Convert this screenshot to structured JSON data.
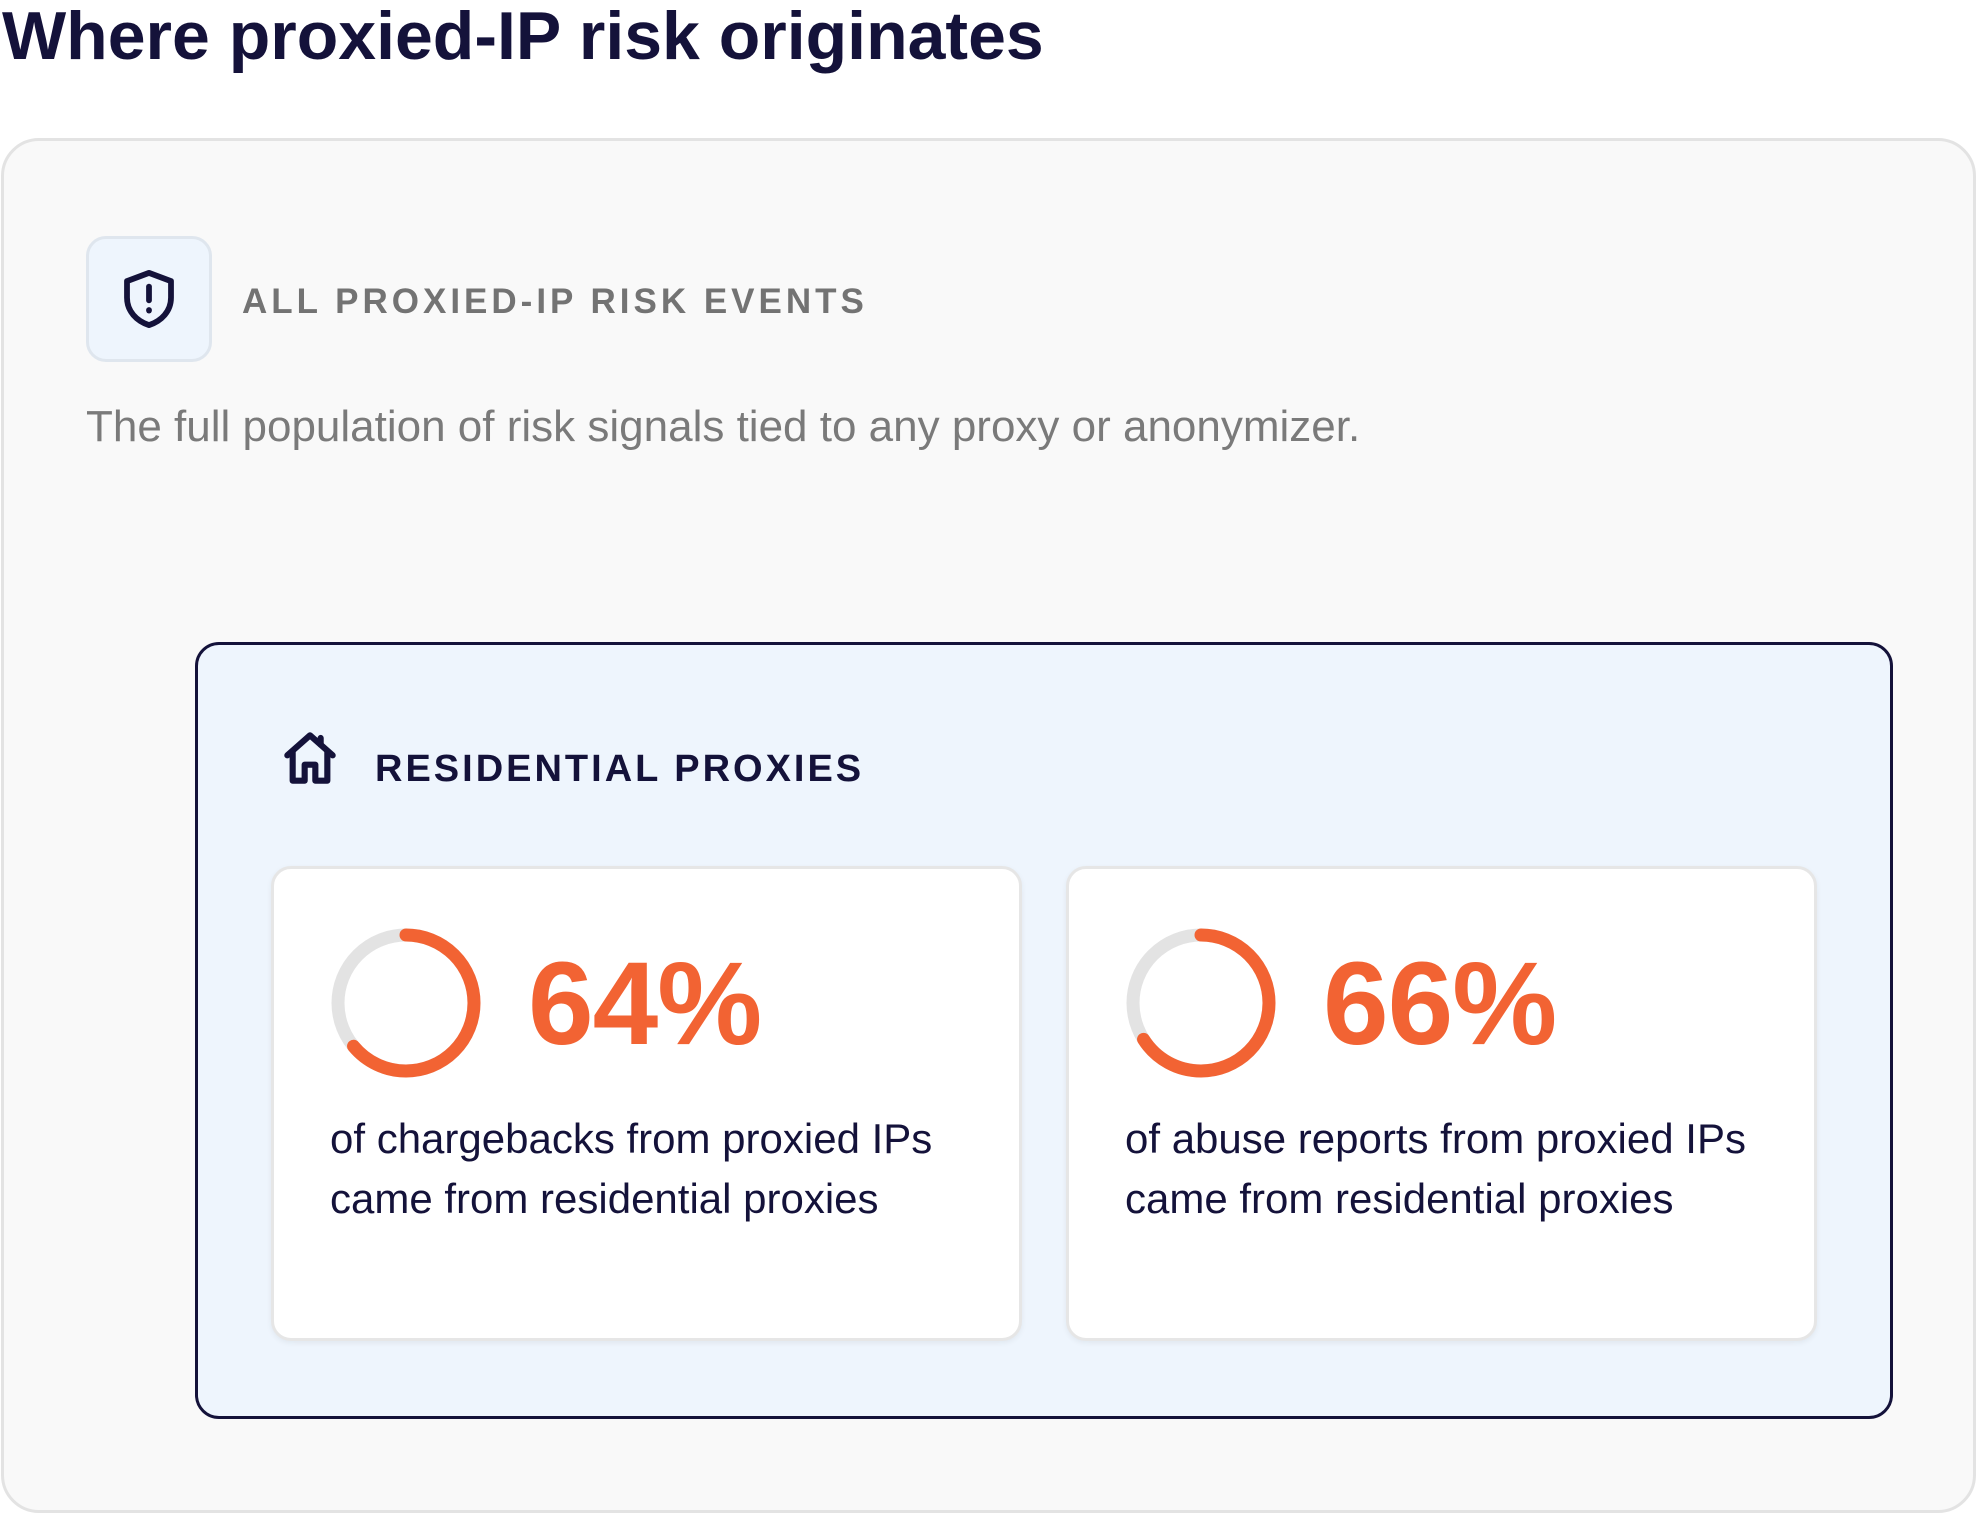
{
  "page": {
    "title": "Where proxied-IP risk originates"
  },
  "all_events": {
    "icon": "shield-alert-icon",
    "label": "ALL PROXIED-IP RISK EVENTS",
    "description": "The full population of risk signals tied to any proxy or anonymizer."
  },
  "residential": {
    "icon": "home-icon",
    "label": "RESIDENTIAL PROXIES",
    "stats": [
      {
        "value": "64%",
        "fraction": 0.64,
        "text": "of chargebacks from proxied IPs came from residential proxies"
      },
      {
        "value": "66%",
        "fraction": 0.66,
        "text": "of abuse reports from proxied IPs came from residential proxies"
      }
    ]
  },
  "colors": {
    "accent": "#f26333",
    "ring_track": "#e3e3e3",
    "dark": "#14123a",
    "muted": "#737373",
    "panel": "#eef5fd"
  }
}
